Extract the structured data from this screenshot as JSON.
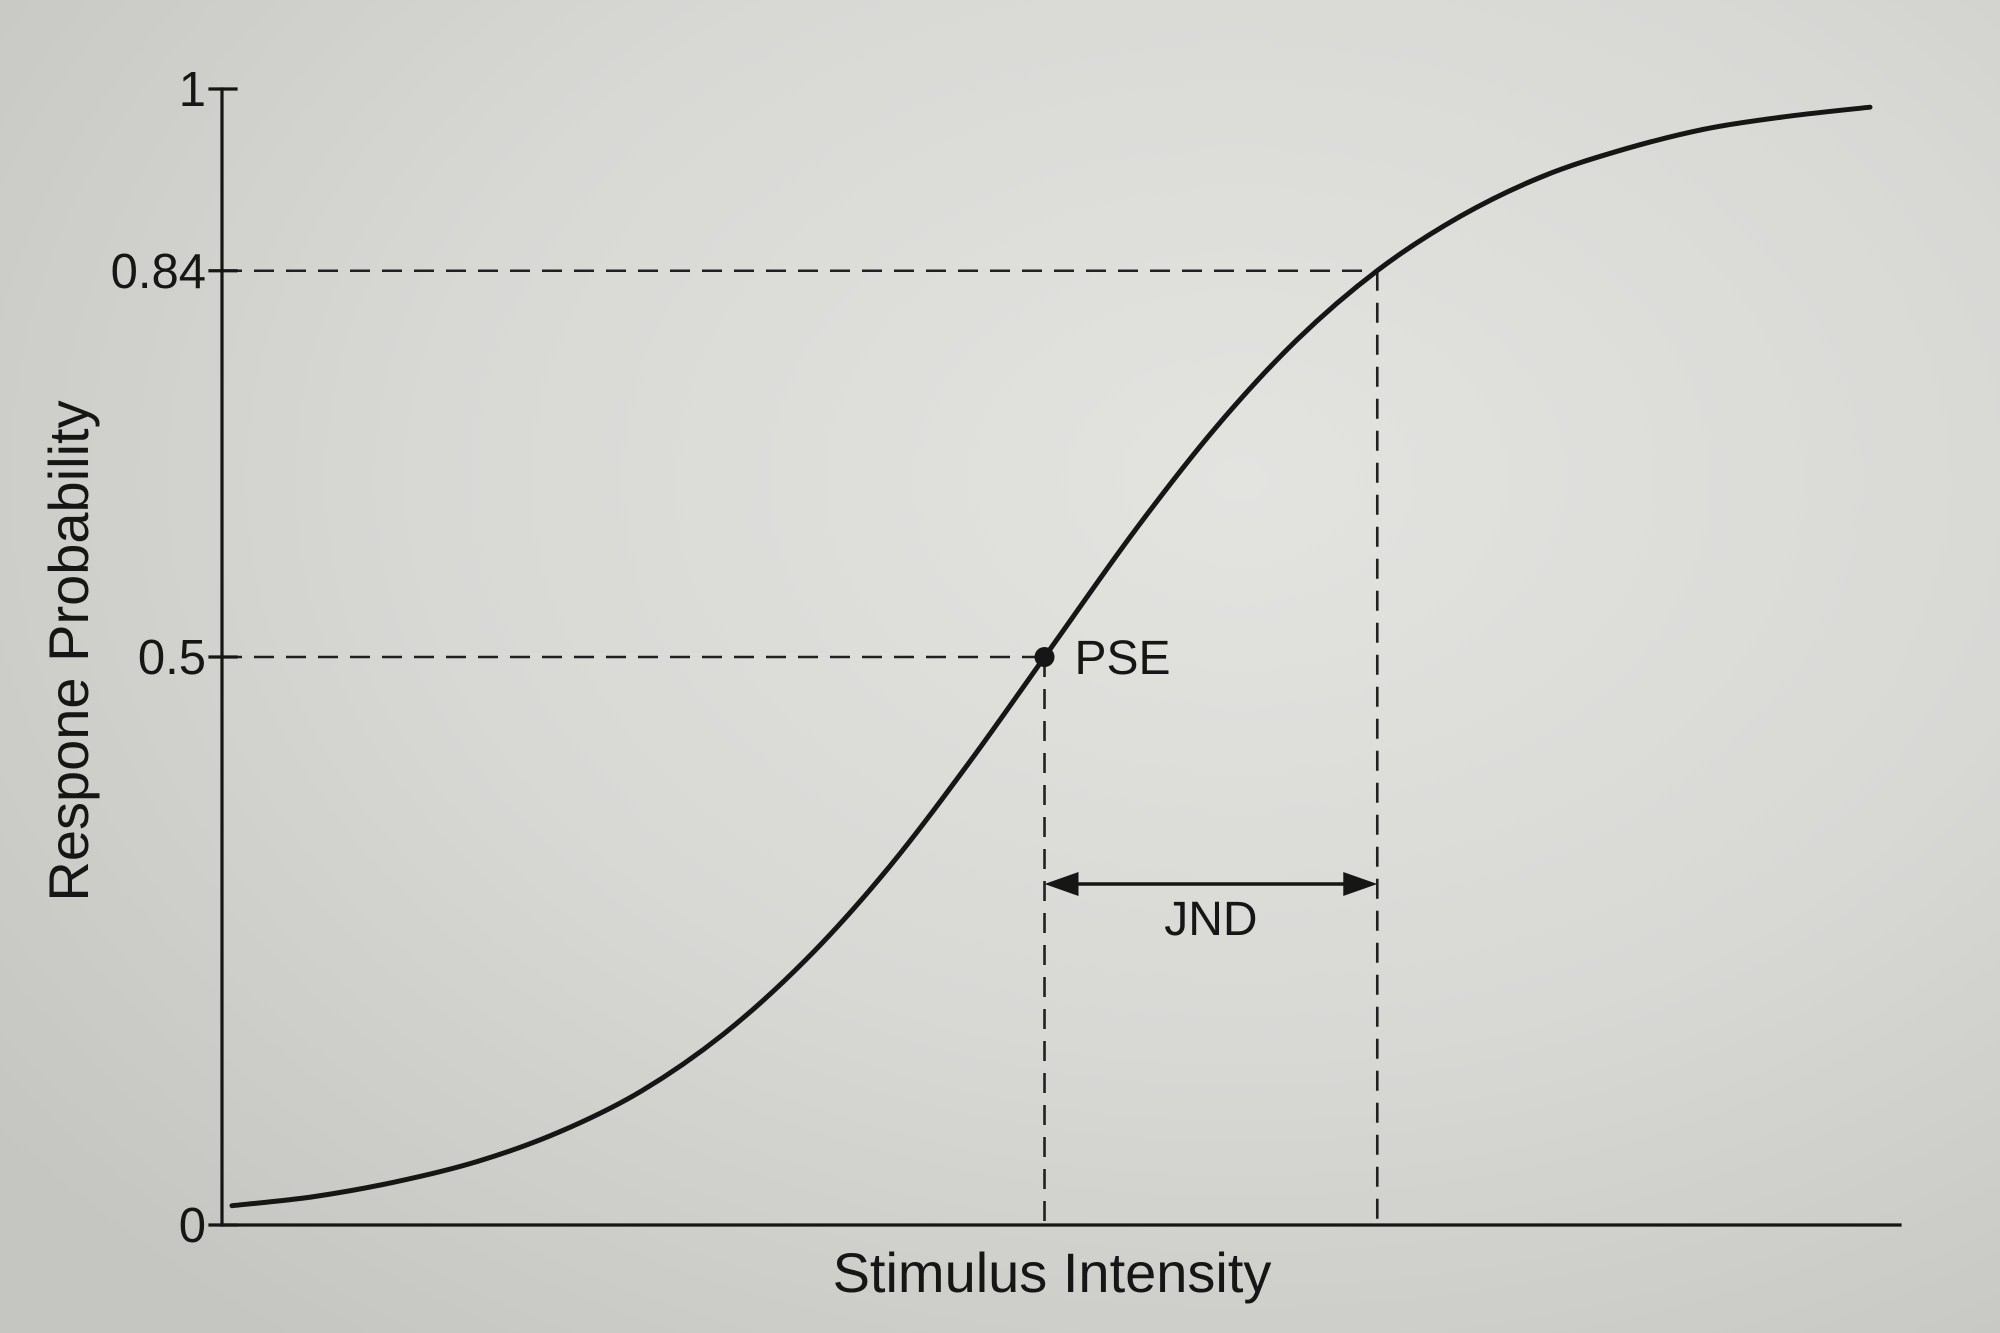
{
  "chart_data": {
    "type": "line",
    "xlabel": "Stimulus Intensity",
    "ylabel": "Respone Probability",
    "ylim": [
      0,
      1
    ],
    "y_ticks": [
      {
        "value": 1,
        "label": "1"
      },
      {
        "value": 0.84,
        "label": "0.84"
      },
      {
        "value": 0.5,
        "label": "0.5"
      },
      {
        "value": 0,
        "label": "0"
      }
    ],
    "grid": false,
    "series": [
      {
        "values": [
          0.017,
          0.025,
          0.038,
          0.056,
          0.082,
          0.118,
          0.168,
          0.233,
          0.313,
          0.407,
          0.508,
          0.609,
          0.701,
          0.779,
          0.841,
          0.888,
          0.923,
          0.947,
          0.965,
          0.976,
          0.984
        ]
      }
    ],
    "annotations": {
      "pse": {
        "label": "PSE",
        "y": 0.5
      },
      "jnd": {
        "label": "JND",
        "from_y": 0.5,
        "to_y": 0.84
      }
    },
    "colors": {
      "ink": "#161616",
      "paper": "#d8d8d5"
    }
  }
}
